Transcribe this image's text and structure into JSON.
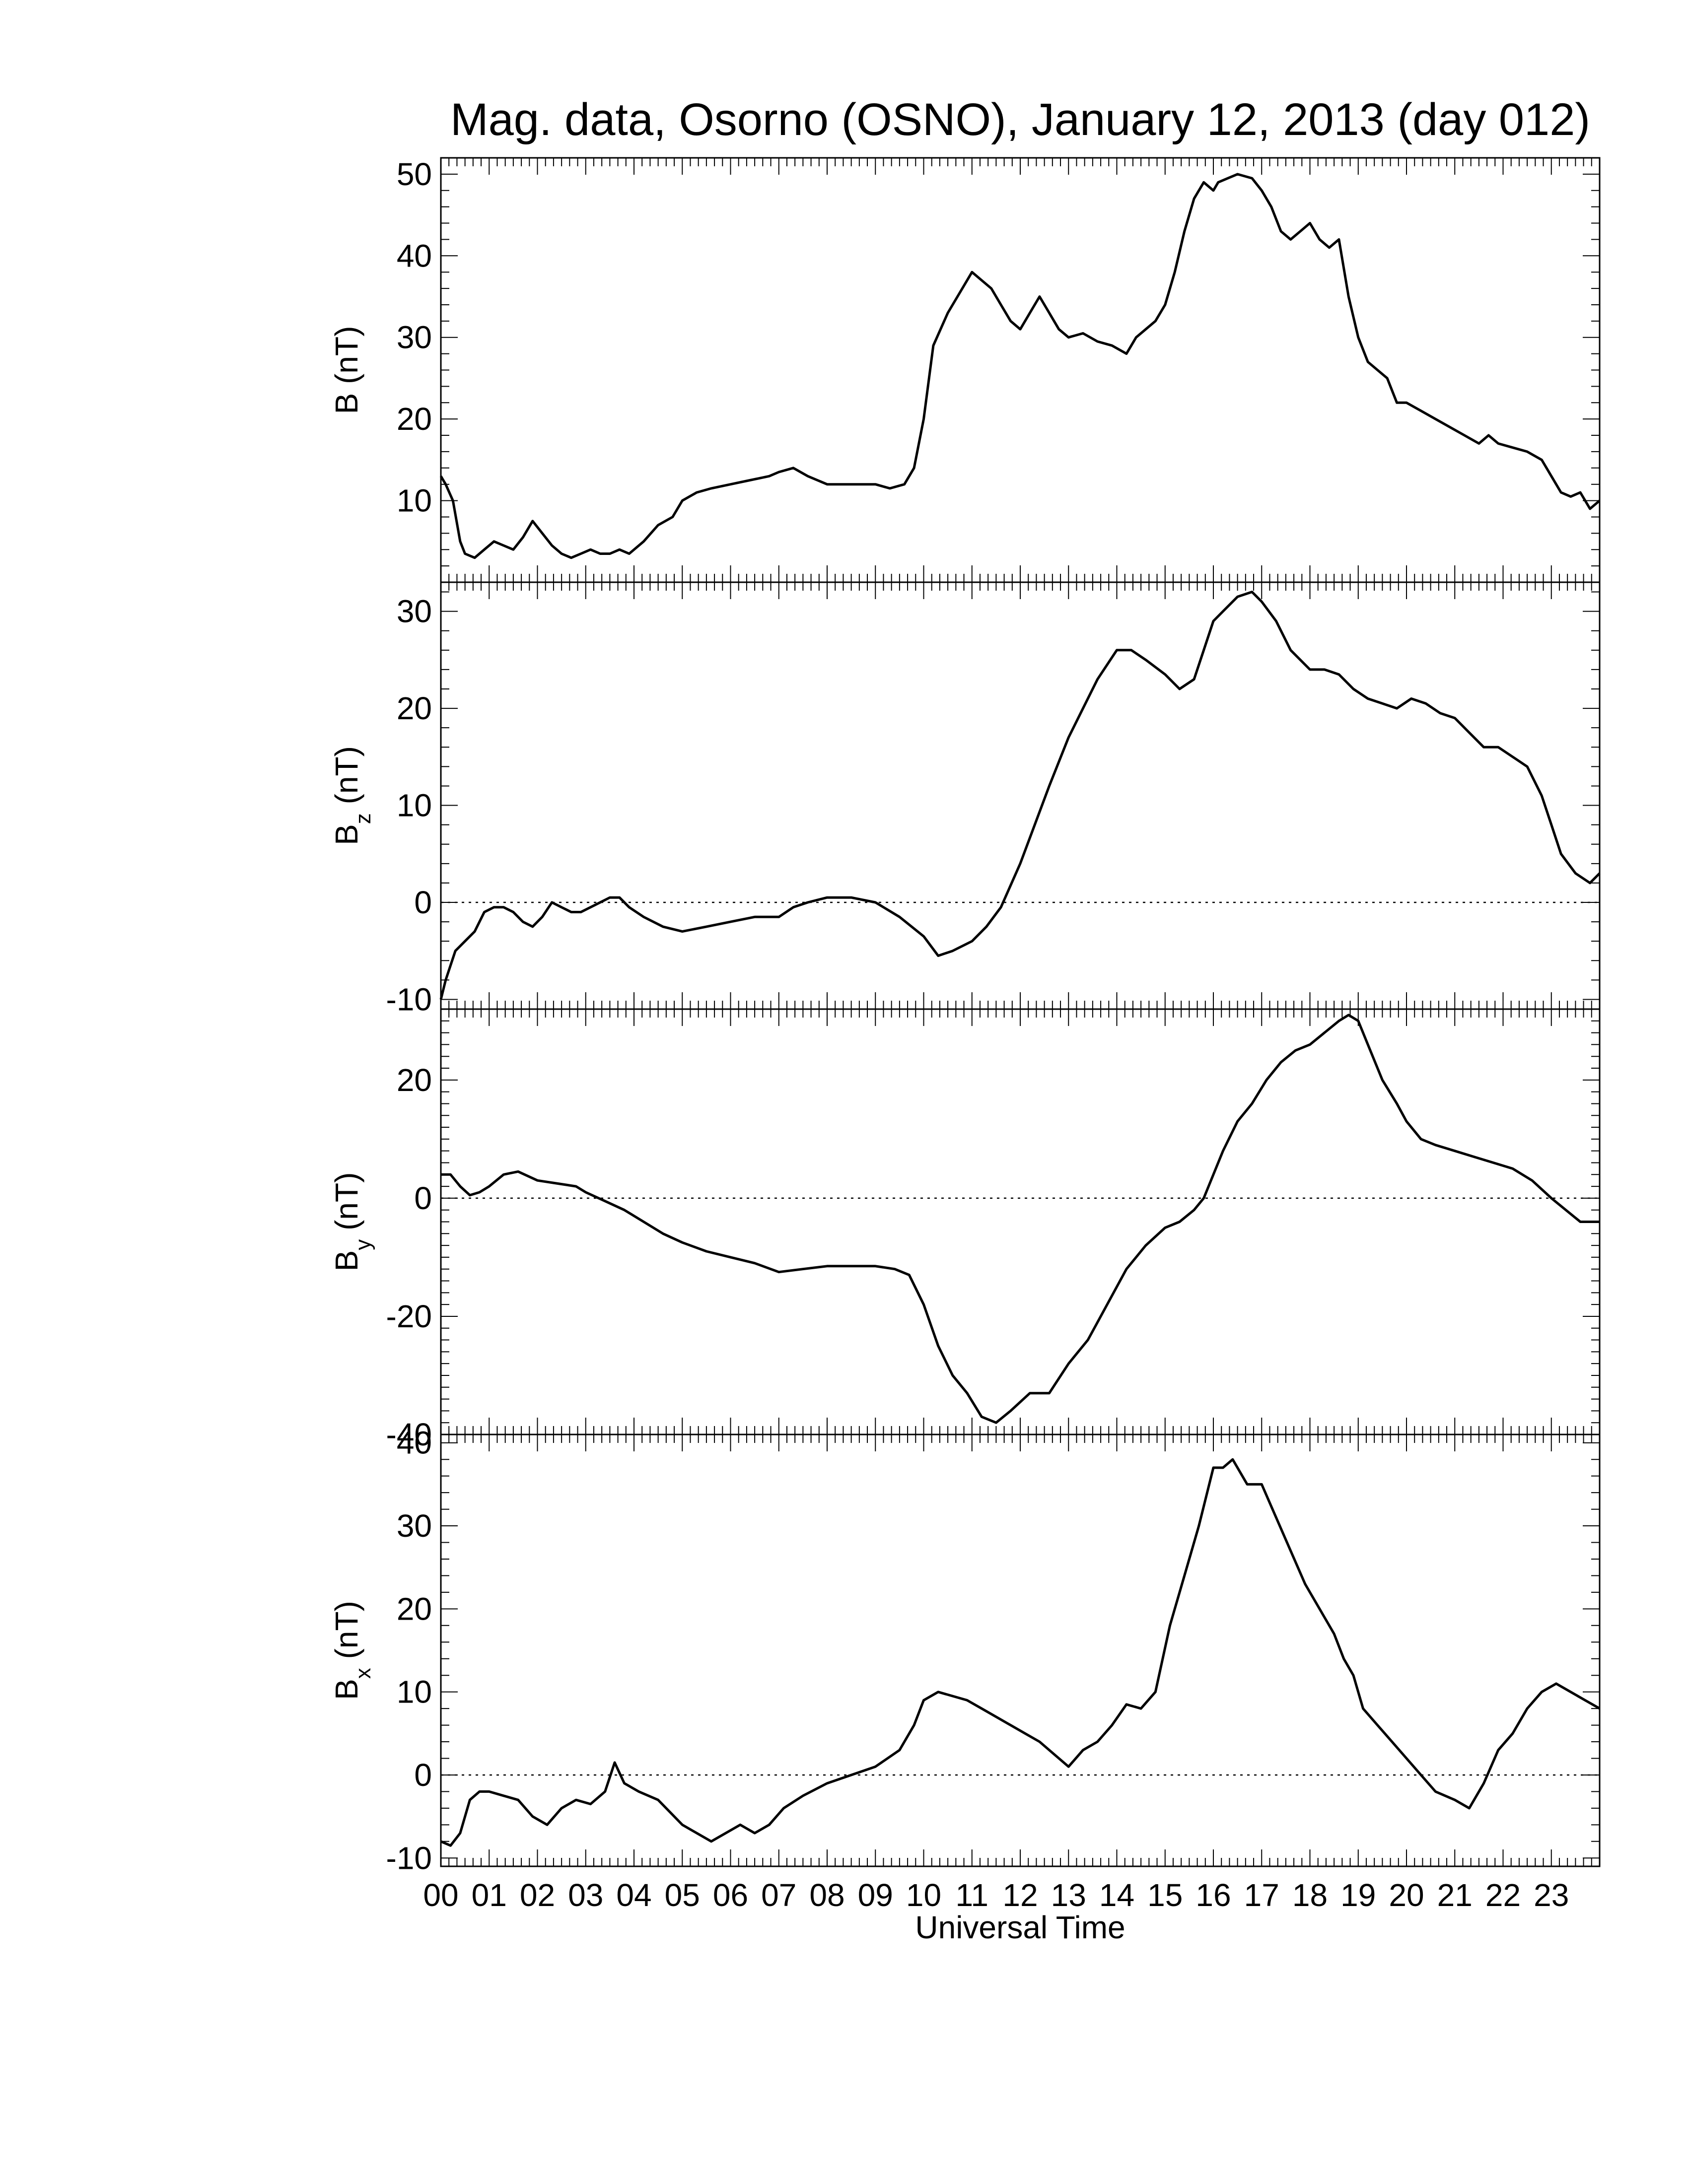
{
  "title": "Mag. data, Osorno (OSNO), January 12, 2013 (day 012)",
  "xlabel": "Universal Time",
  "x_tick_labels": [
    "00",
    "01",
    "02",
    "03",
    "04",
    "05",
    "06",
    "07",
    "08",
    "09",
    "10",
    "11",
    "12",
    "13",
    "14",
    "15",
    "16",
    "17",
    "18",
    "19",
    "20",
    "21",
    "22",
    "23"
  ],
  "line_color": "#000000",
  "chart_data": [
    {
      "type": "line",
      "ylabel_main": "B (nT)",
      "ylabel_sub": "",
      "xlim": [
        0,
        24
      ],
      "ylim": [
        0,
        52
      ],
      "yticks": [
        10,
        20,
        30,
        40,
        50
      ],
      "zero_line": false,
      "x": [
        0,
        0.1,
        0.25,
        0.4,
        0.5,
        0.7,
        0.9,
        1.1,
        1.3,
        1.5,
        1.7,
        1.9,
        2.1,
        2.3,
        2.5,
        2.7,
        2.9,
        3.1,
        3.3,
        3.5,
        3.7,
        3.9,
        4.2,
        4.5,
        4.8,
        5.0,
        5.3,
        5.6,
        6.0,
        6.4,
        6.8,
        7.0,
        7.3,
        7.6,
        8.0,
        8.5,
        9.0,
        9.3,
        9.6,
        9.8,
        10.0,
        10.2,
        10.5,
        10.8,
        11.0,
        11.2,
        11.4,
        11.6,
        11.8,
        12.0,
        12.2,
        12.4,
        12.6,
        12.8,
        13.0,
        13.3,
        13.6,
        13.9,
        14.2,
        14.4,
        14.6,
        14.8,
        15.0,
        15.2,
        15.4,
        15.6,
        15.8,
        16.0,
        16.1,
        16.3,
        16.5,
        16.8,
        17.0,
        17.2,
        17.4,
        17.6,
        17.8,
        18.0,
        18.2,
        18.4,
        18.6,
        18.8,
        19.0,
        19.2,
        19.4,
        19.6,
        19.8,
        20.0,
        20.3,
        20.6,
        20.9,
        21.2,
        21.5,
        21.7,
        21.9,
        22.2,
        22.5,
        22.8,
        23.0,
        23.2,
        23.4,
        23.6,
        23.8,
        24.0
      ],
      "y": [
        13,
        12,
        10,
        5,
        3.5,
        3,
        4,
        5,
        4.5,
        4,
        5.5,
        7.5,
        6,
        4.5,
        3.5,
        3,
        3.5,
        4,
        3.5,
        3.5,
        4,
        3.5,
        5,
        7,
        8,
        10,
        11,
        11.5,
        12,
        12.5,
        13,
        13.5,
        14,
        13,
        12,
        12,
        12,
        11.5,
        12,
        14,
        20,
        29,
        33,
        36,
        38,
        37,
        36,
        34,
        32,
        31,
        33,
        35,
        33,
        31,
        30,
        30.5,
        29.5,
        29,
        28,
        30,
        31,
        32,
        34,
        38,
        43,
        47,
        49,
        48,
        49,
        49.5,
        50,
        49.5,
        48,
        46,
        43,
        42,
        43,
        44,
        42,
        41,
        42,
        35,
        30,
        27,
        26,
        25,
        22,
        22,
        21,
        20,
        19,
        18,
        17,
        18,
        17,
        16.5,
        16,
        15,
        13,
        11,
        10.5,
        11,
        9,
        10
      ]
    },
    {
      "type": "line",
      "ylabel_main": "B",
      "ylabel_sub": "z",
      "xlim": [
        0,
        24
      ],
      "ylim": [
        -11,
        33
      ],
      "yticks": [
        -10,
        0,
        10,
        20,
        30
      ],
      "zero_line": true,
      "x": [
        0,
        0.1,
        0.3,
        0.5,
        0.7,
        0.9,
        1.1,
        1.3,
        1.5,
        1.7,
        1.9,
        2.1,
        2.3,
        2.5,
        2.7,
        2.9,
        3.1,
        3.3,
        3.5,
        3.7,
        3.9,
        4.2,
        4.6,
        5.0,
        5.5,
        6.0,
        6.5,
        7.0,
        7.3,
        7.6,
        8.0,
        8.5,
        9.0,
        9.5,
        10.0,
        10.3,
        10.6,
        11.0,
        11.3,
        11.6,
        12.0,
        12.3,
        12.6,
        13.0,
        13.3,
        13.6,
        14.0,
        14.3,
        14.6,
        15.0,
        15.3,
        15.6,
        15.8,
        16.0,
        16.2,
        16.5,
        16.8,
        17.0,
        17.3,
        17.6,
        18.0,
        18.3,
        18.6,
        18.9,
        19.2,
        19.5,
        19.8,
        20.1,
        20.4,
        20.7,
        21.0,
        21.3,
        21.6,
        21.9,
        22.2,
        22.5,
        22.8,
        23.0,
        23.2,
        23.5,
        23.8,
        24.0
      ],
      "y": [
        -10,
        -8,
        -5,
        -4,
        -3,
        -1,
        -0.5,
        -0.5,
        -1,
        -2,
        -2.5,
        -1.5,
        0,
        -0.5,
        -1,
        -1,
        -0.5,
        0,
        0.5,
        0.5,
        -0.5,
        -1.5,
        -2.5,
        -3,
        -2.5,
        -2,
        -1.5,
        -1.5,
        -0.5,
        0,
        0.5,
        0.5,
        0,
        -1.5,
        -3.5,
        -5.5,
        -5,
        -4,
        -2.5,
        -0.5,
        4,
        8,
        12,
        17,
        20,
        23,
        26,
        26,
        25,
        23.5,
        22,
        23,
        26,
        29,
        30,
        31.5,
        32,
        31,
        29,
        26,
        24,
        24,
        23.5,
        22,
        21,
        20.5,
        20,
        21,
        20.5,
        19.5,
        19,
        17.5,
        16,
        16,
        15,
        14,
        11,
        8,
        5,
        3,
        2,
        3
      ]
    },
    {
      "type": "line",
      "ylabel_main": "B",
      "ylabel_sub": "y",
      "xlim": [
        0,
        24
      ],
      "ylim": [
        -40,
        32
      ],
      "yticks": [
        -40,
        -20,
        0,
        20
      ],
      "zero_line": true,
      "x": [
        0,
        0.2,
        0.4,
        0.6,
        0.8,
        1.0,
        1.3,
        1.6,
        2.0,
        2.4,
        2.8,
        3.0,
        3.4,
        3.8,
        4.2,
        4.6,
        5.0,
        5.5,
        6.0,
        6.5,
        7.0,
        7.5,
        8.0,
        8.5,
        9.0,
        9.4,
        9.7,
        10.0,
        10.3,
        10.6,
        10.9,
        11.2,
        11.5,
        11.8,
        12.2,
        12.6,
        13.0,
        13.4,
        13.8,
        14.2,
        14.6,
        15.0,
        15.3,
        15.6,
        15.8,
        16.0,
        16.2,
        16.5,
        16.8,
        17.1,
        17.4,
        17.7,
        18.0,
        18.3,
        18.6,
        18.8,
        19.0,
        19.2,
        19.5,
        19.8,
        20.0,
        20.3,
        20.6,
        21.0,
        21.4,
        21.8,
        22.2,
        22.6,
        23.0,
        23.3,
        23.6,
        24.0
      ],
      "y": [
        4,
        4,
        2,
        0.5,
        1,
        2,
        4,
        4.5,
        3,
        2.5,
        2,
        1,
        -0.5,
        -2,
        -4,
        -6,
        -7.5,
        -9,
        -10,
        -11,
        -12.5,
        -12,
        -11.5,
        -11.5,
        -11.5,
        -12,
        -13,
        -18,
        -25,
        -30,
        -33,
        -37,
        -38,
        -36,
        -33,
        -33,
        -28,
        -24,
        -18,
        -12,
        -8,
        -5,
        -4,
        -2,
        0,
        4,
        8,
        13,
        16,
        20,
        23,
        25,
        26,
        28,
        30,
        31,
        30,
        26,
        20,
        16,
        13,
        10,
        9,
        8,
        7,
        6,
        5,
        3,
        0,
        -2,
        -4,
        -4
      ]
    },
    {
      "type": "line",
      "ylabel_main": "B",
      "ylabel_sub": "x",
      "xlim": [
        0,
        24
      ],
      "ylim": [
        -11,
        41
      ],
      "yticks": [
        -10,
        0,
        10,
        20,
        30,
        40
      ],
      "zero_line": true,
      "x": [
        0,
        0.2,
        0.4,
        0.6,
        0.8,
        1.0,
        1.3,
        1.6,
        1.9,
        2.2,
        2.5,
        2.8,
        3.1,
        3.4,
        3.6,
        3.8,
        4.1,
        4.5,
        5.0,
        5.3,
        5.6,
        5.9,
        6.2,
        6.5,
        6.8,
        7.1,
        7.5,
        8.0,
        8.5,
        9.0,
        9.5,
        9.8,
        10.0,
        10.3,
        10.6,
        10.9,
        11.2,
        11.5,
        11.8,
        12.1,
        12.4,
        12.7,
        13.0,
        13.3,
        13.6,
        13.9,
        14.2,
        14.5,
        14.8,
        15.1,
        15.4,
        15.7,
        16.0,
        16.2,
        16.4,
        16.7,
        17.0,
        17.3,
        17.6,
        17.9,
        18.2,
        18.5,
        18.7,
        18.9,
        19.1,
        19.4,
        19.7,
        20.0,
        20.3,
        20.6,
        21.0,
        21.3,
        21.6,
        21.9,
        22.2,
        22.5,
        22.8,
        23.1,
        23.4,
        23.7,
        24.0
      ],
      "y": [
        -8,
        -8.5,
        -7,
        -3,
        -2,
        -2,
        -2.5,
        -3,
        -5,
        -6,
        -4,
        -3,
        -3.5,
        -2,
        1.5,
        -1,
        -2,
        -3,
        -6,
        -7,
        -8,
        -7,
        -6,
        -7,
        -6,
        -4,
        -2.5,
        -1,
        0,
        1,
        3,
        6,
        9,
        10,
        9.5,
        9,
        8,
        7,
        6,
        5,
        4,
        2.5,
        1,
        3,
        4,
        6,
        8.5,
        8,
        10,
        18,
        24,
        30,
        37,
        37,
        38,
        35,
        35,
        31,
        27,
        23,
        20,
        17,
        14,
        12,
        8,
        6,
        4,
        2,
        0,
        -2,
        -3,
        -4,
        -1,
        3,
        5,
        8,
        10,
        11,
        10,
        9,
        8
      ]
    }
  ]
}
